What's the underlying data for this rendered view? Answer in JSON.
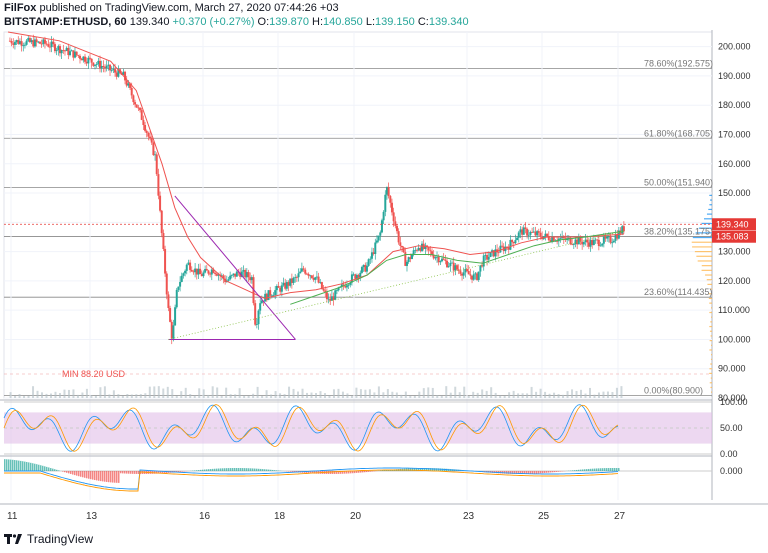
{
  "header": {
    "author": "FilFox",
    "published_text": "published on TradingView.com, March 27, 2020 07:44:26 +03",
    "symbol": "BITSTAMP:ETHUSD, 60",
    "last": "139.340",
    "change": "+0.370 (+0.27%)",
    "o_label": "O:",
    "o_value": "139.870",
    "h_label": "H:",
    "h_value": "140.850",
    "l_label": "L:",
    "l_value": "139.150",
    "c_label": "C:",
    "c_value": "139.340"
  },
  "footer": {
    "brand": "TradingView"
  },
  "colors": {
    "up": "#26a69a",
    "down": "#ef5350",
    "ma_red": "#ef5350",
    "ma_green": "#4caf50",
    "triangle": "#9c27b0",
    "fib": "#888888",
    "stoch_band": "#e1bee7",
    "price_tag": "#e53935"
  },
  "chart_data": {
    "type": "candlestick",
    "x_tick_labels": [
      "11",
      "13",
      "16",
      "18",
      "20",
      "23",
      "25",
      "27"
    ],
    "y_ticks": [
      "200.000",
      "190.000",
      "180.000",
      "170.000",
      "160.000",
      "150.000",
      "140.000",
      "130.000",
      "120.000",
      "110.000",
      "100.000",
      "90.000",
      "80.000"
    ],
    "ylim": [
      80,
      205
    ],
    "fib_levels": [
      {
        "label": "78.60%(192.575)",
        "value": 192.575
      },
      {
        "label": "61.80%(168.705)",
        "value": 168.705
      },
      {
        "label": "50.00%(151.940)",
        "value": 151.94
      },
      {
        "label": "38.20%(135.175)",
        "value": 135.175
      },
      {
        "label": "23.60%(114.435)",
        "value": 114.435
      },
      {
        "label": "0.00%(80.900)",
        "value": 80.9
      }
    ],
    "current_price_label": "139.340",
    "secondary_price_label": "135.083",
    "min_label": "MIN 88.20 USD",
    "close_path": [
      [
        0,
        202
      ],
      [
        3,
        201
      ],
      [
        6,
        196
      ],
      [
        9,
        190
      ],
      [
        10.5,
        175
      ],
      [
        11.5,
        162
      ],
      [
        12,
        135
      ],
      [
        12.5,
        110
      ],
      [
        12.8,
        100
      ],
      [
        13.2,
        118
      ],
      [
        14,
        126
      ],
      [
        15,
        122
      ],
      [
        16,
        124
      ],
      [
        17,
        120
      ],
      [
        18,
        123
      ],
      [
        19,
        121
      ],
      [
        19.3,
        104
      ],
      [
        19.6,
        113
      ],
      [
        20.5,
        116
      ],
      [
        21.5,
        118
      ],
      [
        22.5,
        121
      ],
      [
        23,
        124
      ],
      [
        24,
        121
      ],
      [
        25,
        113
      ],
      [
        26.5,
        120
      ],
      [
        28,
        125
      ],
      [
        29,
        136
      ],
      [
        29.5,
        152
      ],
      [
        30.5,
        133
      ],
      [
        31,
        126
      ],
      [
        32,
        132
      ],
      [
        33.5,
        128
      ],
      [
        35,
        124
      ],
      [
        36.5,
        121
      ],
      [
        37,
        127
      ],
      [
        38,
        130
      ],
      [
        39,
        132
      ],
      [
        40,
        137
      ],
      [
        42,
        135
      ],
      [
        43.5,
        134
      ],
      [
        45.5,
        133
      ],
      [
        47,
        134
      ],
      [
        48,
        138
      ]
    ],
    "ma_red": [
      [
        0,
        205
      ],
      [
        4,
        202
      ],
      [
        8,
        195
      ],
      [
        10,
        185
      ],
      [
        12,
        160
      ],
      [
        13,
        145
      ],
      [
        14,
        135
      ],
      [
        15,
        128
      ],
      [
        16,
        124
      ],
      [
        17,
        120
      ],
      [
        18,
        118
      ],
      [
        19,
        116
      ],
      [
        20,
        114
      ],
      [
        21,
        115
      ],
      [
        22,
        116
      ],
      [
        24,
        117
      ],
      [
        26,
        119
      ],
      [
        28,
        122
      ],
      [
        29,
        126
      ],
      [
        30,
        130
      ],
      [
        32,
        132
      ],
      [
        34,
        131
      ],
      [
        36,
        129
      ],
      [
        38,
        130
      ],
      [
        40,
        133
      ],
      [
        42,
        135
      ],
      [
        45,
        135
      ],
      [
        48,
        136
      ]
    ],
    "ma_green": [
      [
        22,
        112
      ],
      [
        24,
        115
      ],
      [
        26,
        118
      ],
      [
        28,
        122
      ],
      [
        29.5,
        127
      ],
      [
        31,
        129
      ],
      [
        33,
        129
      ],
      [
        35,
        127
      ],
      [
        37,
        126
      ],
      [
        39,
        129
      ],
      [
        41,
        132
      ],
      [
        43,
        134
      ],
      [
        45,
        135
      ],
      [
        48,
        137
      ]
    ],
    "triangle_lines": [
      [
        [
          13,
          149
        ],
        [
          22.4,
          100
        ]
      ],
      [
        [
          12.5,
          100
        ],
        [
          22.4,
          100
        ]
      ]
    ],
    "trendline": [
      [
        12.5,
        100
      ],
      [
        48,
        137
      ]
    ],
    "stoch_ticks": [
      "100.00",
      "50.00",
      "0.00"
    ],
    "stoch_band": [
      20,
      80
    ],
    "macd_ticks": [
      "0.000"
    ]
  }
}
